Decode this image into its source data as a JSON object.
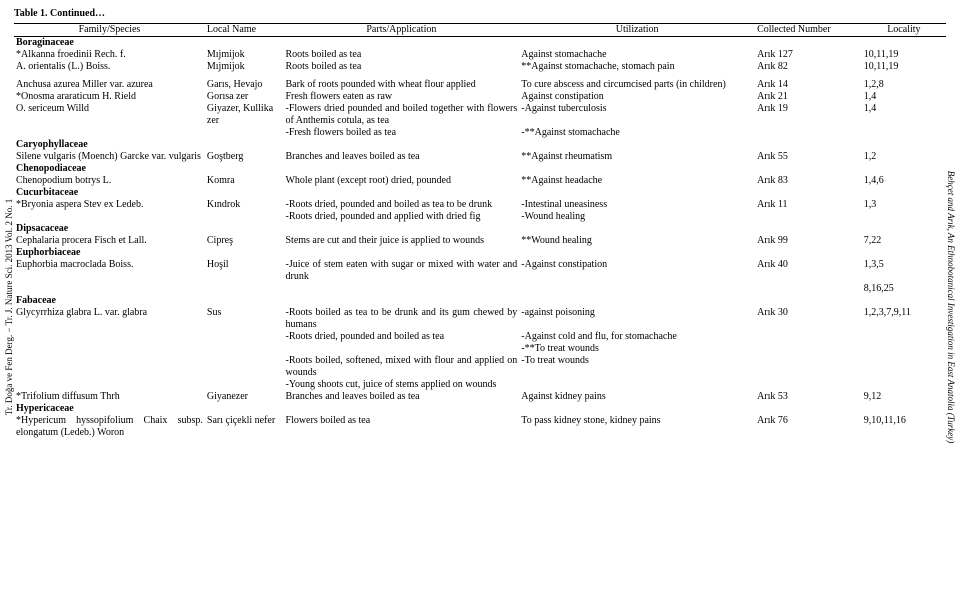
{
  "table_title": "Table 1. Continued…",
  "cols": {
    "family": "Family/Species",
    "local": "Local Name",
    "parts": "Parts/Application",
    "util": "Utilization",
    "coll": "Collected Number",
    "loc": "Locality"
  },
  "side_left": "Tr. Doğa ve Fen Derg. − Tr. J. Nature Sci.    2013    Vol. 2    No. 1",
  "side_right": "Behçet and Arık, An Ethnobotanical Investigation in East Anatolia (Turkey)",
  "families": {
    "f1": "Boraginaceae",
    "f2": "Caryophyllaceae",
    "f3": "Chenopodiaceae",
    "f4": "Cucurbitaceae",
    "f5": "Dipsacaceae",
    "f6": "Euphorbiaceae",
    "f7": "Fabaceae",
    "f8": "Hypericaceae"
  },
  "r1": {
    "sp": "*Alkanna froedinii Rech. f.",
    "loc": "Mıjmijok",
    "parts": "Roots boiled as tea",
    "util": "Against stomachache",
    "coll": "Arık 127",
    "locn": "10,11,19"
  },
  "r2": {
    "sp": "A. orientalis (L.) Boiss.",
    "loc": "Mıjmijok",
    "parts": "Roots boiled as tea",
    "util": "**Against stomachache, stomach pain",
    "coll": "Arık 82",
    "locn": "10,11,19"
  },
  "r3": {
    "sp": "Anchusa azurea Miller var. azurea",
    "loc": "Garıs, Hevajo",
    "parts": "Bark of roots pounded with wheat flour applied",
    "util": "To cure abscess and circumcised parts (in children)",
    "coll": "Arık 14",
    "locn": "1,2,8"
  },
  "r4": {
    "sp": "*Onosma araraticum H. Rield",
    "loc": "Gorısa zer",
    "parts": "Fresh flowers eaten as raw",
    "util": "Against constipation",
    "coll": "Arık 21",
    "locn": "1,4"
  },
  "r5": {
    "sp": "O. sericeum Willd",
    "loc": "Giyazer, Kullika zer",
    "parts": "-Flowers dried pounded and boiled together with flowers of Anthemis cotula, as tea",
    "util": "-Against tuberculosis",
    "coll": "Arık 19",
    "locn": "1,4"
  },
  "r5b": {
    "parts": "-Fresh flowers boiled as tea",
    "util": "-**Against stomachache"
  },
  "r6": {
    "sp": "Silene vulgaris (Moench) Garcke var. vulgaris",
    "loc": "Goştberg",
    "parts": "Branches and leaves boiled as tea",
    "util": "**Against rheumatism",
    "coll": "Arık 55",
    "locn": "1,2"
  },
  "r7": {
    "sp": "Chenopodium botrys L.",
    "loc": "Komra",
    "parts": "Whole plant (except root) dried, pounded",
    "util": "**Against headache",
    "coll": "Arık 83",
    "locn": "1,4,6"
  },
  "r8": {
    "sp": "*Bryonia aspera Stev ex Ledeb.",
    "loc": "Kındrok",
    "parts": "-Roots dried, pounded and boiled as tea to be drunk",
    "util": "-Intestinal uneasiness",
    "coll": "Arık 11",
    "locn": "1,3"
  },
  "r8b": {
    "parts": "-Roots dried, pounded and applied with dried fig",
    "util": "-Wound healing"
  },
  "r9": {
    "sp": "Cephalaria procera Fisch et Lall.",
    "loc": "Cipreş",
    "parts": "Stems are cut and their juice is applied to wounds",
    "util": "**Wound healing",
    "coll": "Arık 99",
    "locn": "7,22"
  },
  "r10": {
    "sp": "Euphorbia macroclada Boiss.",
    "loc": "Hoşil",
    "parts": "-Juice of stem eaten with sugar or mixed with water and drunk",
    "util": "-Against constipation",
    "coll": "Arık 40",
    "locn": "1,3,5"
  },
  "r10b": {
    "locn": "8,16,25"
  },
  "r11": {
    "sp": "Glycyrrhiza glabra L. var. glabra",
    "loc": "Sus",
    "parts": "-Roots boiled as tea to be drunk and its gum chewed by humans",
    "util": "-against poisoning",
    "coll": "Arık 30",
    "locn": "1,2,3,7,9,11"
  },
  "r11b": {
    "parts": "-Roots dried, pounded and  boiled as tea",
    "util": "-Against cold and flu, for stomachache"
  },
  "r11b2": {
    "util": "-**To treat wounds"
  },
  "r11c": {
    "parts": "-Roots boiled, softened, mixed with flour and  applied on wounds",
    "util": "-To treat wounds"
  },
  "r11d": {
    "parts": "-Young shoots cut, juice of stems applied on wounds"
  },
  "r12": {
    "sp": "*Trifolium diffusum Thrh",
    "loc": "Giyanezer",
    "parts": "Branches and leaves boiled as tea",
    "util": "Against kidney pains",
    "coll": "Arık 53",
    "locn": "9,12"
  },
  "r13": {
    "sp": "*Hypericum hyssopifolium Chaix subsp. elongatum (Ledeb.) Woron",
    "loc": "Sarı çiçekli nefer",
    "parts": "Flowers boiled as tea",
    "util": "To pass kidney stone, kidney pains",
    "coll": "Arık 76",
    "locn": "9,10,11,16"
  }
}
